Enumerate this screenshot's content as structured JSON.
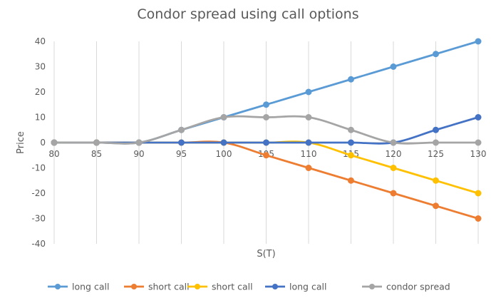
{
  "chart_data": {
    "type": "line",
    "title": "Condor spread using call options",
    "xlabel": "S(T)",
    "ylabel": "Price",
    "x": [
      80,
      85,
      90,
      95,
      100,
      105,
      110,
      115,
      120,
      125,
      130
    ],
    "ylim": [
      -40,
      40
    ],
    "yticks": [
      40,
      30,
      20,
      10,
      0,
      -10,
      -20,
      -30,
      -40
    ],
    "grid": "vertical",
    "legend_position": "bottom",
    "series": [
      {
        "name": "long call",
        "color": "#5B9BD5",
        "values": [
          0,
          0,
          0,
          5,
          10,
          15,
          20,
          25,
          30,
          35,
          40
        ]
      },
      {
        "name": "short call",
        "color": "#ED7D31",
        "values": [
          0,
          0,
          0,
          0,
          0,
          -5,
          -10,
          -15,
          -20,
          -25,
          -30
        ]
      },
      {
        "name": "short call",
        "color": "#FFC000",
        "values": [
          0,
          0,
          0,
          0,
          0,
          0,
          0,
          -5,
          -10,
          -15,
          -20
        ]
      },
      {
        "name": "long call",
        "color": "#4472C4",
        "values": [
          0,
          0,
          0,
          0,
          0,
          0,
          0,
          0,
          0,
          5,
          10
        ]
      },
      {
        "name": "condor spread",
        "color": "#A5A5A5",
        "values": [
          0,
          0,
          0,
          5,
          10,
          10,
          10,
          5,
          0,
          0,
          0
        ]
      }
    ]
  }
}
